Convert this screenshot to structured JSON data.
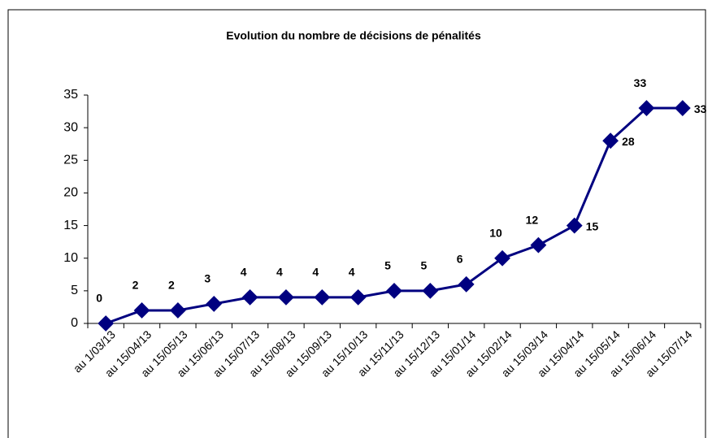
{
  "chart_data": {
    "type": "line",
    "title": "Evolution du nombre de décisions de pénalités",
    "categories": [
      "au 1/03/13",
      "au 15/04/13",
      "au 15/05/13",
      "au 15/06/13",
      "au 15/07/13",
      "au 15/08/13",
      "au 15/09/13",
      "au 15/10/13",
      "au 15/11/13",
      "au 15/12/13",
      "au 15/01/14",
      "au 15/02/14",
      "au 15/03/14",
      "au 15/04/14",
      "au 15/05/14",
      "au 15/06/14",
      "au 15/07/14"
    ],
    "values": [
      0,
      2,
      2,
      3,
      4,
      4,
      4,
      4,
      5,
      5,
      6,
      10,
      12,
      15,
      28,
      33,
      33
    ],
    "color": "#000080",
    "ylim": [
      0,
      35
    ],
    "yticks": [
      0,
      5,
      10,
      15,
      20,
      25,
      30,
      35
    ],
    "grid": false
  }
}
